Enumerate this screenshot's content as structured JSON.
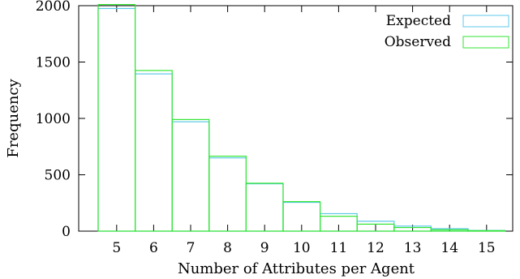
{
  "chart_data": {
    "type": "bar",
    "categories": [
      "5",
      "6",
      "7",
      "8",
      "9",
      "10",
      "11",
      "12",
      "13",
      "14",
      "15"
    ],
    "series": [
      {
        "name": "Expected",
        "color": "#5ec8e8",
        "values": [
          1975,
          1395,
          970,
          650,
          420,
          255,
          155,
          88,
          45,
          22,
          6
        ]
      },
      {
        "name": "Observed",
        "color": "#33e633",
        "values": [
          2010,
          1425,
          990,
          665,
          425,
          262,
          132,
          62,
          32,
          12,
          4
        ]
      }
    ],
    "xlabel": "Number of Attributes per Agent",
    "ylabel": "Frequency",
    "ylim": [
      0,
      2000
    ],
    "yticks": [
      0,
      500,
      1000,
      1500,
      2000
    ],
    "grid": false,
    "legend": "top-right"
  }
}
